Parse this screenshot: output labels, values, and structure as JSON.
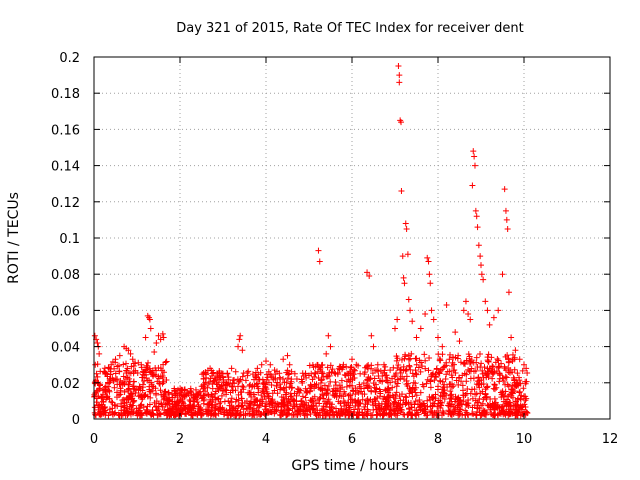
{
  "chart_data": {
    "type": "scatter",
    "title": "Day 321 of 2015, Rate Of TEC Index for receiver dent",
    "xlabel": "GPS time / hours",
    "ylabel": "ROTI / TECUs",
    "xlim": [
      0,
      12
    ],
    "ylim": [
      0,
      0.2
    ],
    "xticks": [
      "0",
      "2",
      "4",
      "6",
      "8",
      "10",
      "12"
    ],
    "yticks": [
      "0",
      "0.02",
      "0.04",
      "0.06",
      "0.08",
      "0.1",
      "0.12",
      "0.14",
      "0.16",
      "0.18",
      "0.2"
    ],
    "grid": true,
    "marker": "+",
    "color": "#ff0000",
    "series": [
      {
        "name": "ROTI",
        "points": [
          [
            0.02,
            0.046
          ],
          [
            0.05,
            0.044
          ],
          [
            0.08,
            0.042
          ],
          [
            0.1,
            0.04
          ],
          [
            0.12,
            0.036
          ],
          [
            0.03,
            0.03
          ],
          [
            0.06,
            0.025
          ],
          [
            0.4,
            0.03
          ],
          [
            0.5,
            0.033
          ],
          [
            0.6,
            0.035
          ],
          [
            0.7,
            0.04
          ],
          [
            0.75,
            0.039
          ],
          [
            0.8,
            0.038
          ],
          [
            0.85,
            0.036
          ],
          [
            0.9,
            0.033
          ],
          [
            1.1,
            0.03
          ],
          [
            1.2,
            0.045
          ],
          [
            1.25,
            0.057
          ],
          [
            1.28,
            0.056
          ],
          [
            1.3,
            0.055
          ],
          [
            1.32,
            0.05
          ],
          [
            1.4,
            0.037
          ],
          [
            1.45,
            0.042
          ],
          [
            1.5,
            0.046
          ],
          [
            1.55,
            0.044
          ],
          [
            1.6,
            0.047
          ],
          [
            1.62,
            0.045
          ],
          [
            2.6,
            0.025
          ],
          [
            2.7,
            0.028
          ],
          [
            3.0,
            0.025
          ],
          [
            3.2,
            0.028
          ],
          [
            3.35,
            0.04
          ],
          [
            3.38,
            0.044
          ],
          [
            3.4,
            0.046
          ],
          [
            3.45,
            0.038
          ],
          [
            3.8,
            0.028
          ],
          [
            3.9,
            0.03
          ],
          [
            4.0,
            0.032
          ],
          [
            4.1,
            0.03
          ],
          [
            4.2,
            0.027
          ],
          [
            4.4,
            0.033
          ],
          [
            4.5,
            0.035
          ],
          [
            4.55,
            0.03
          ],
          [
            5.0,
            0.024
          ],
          [
            5.15,
            0.025
          ],
          [
            5.22,
            0.093
          ],
          [
            5.25,
            0.087
          ],
          [
            5.3,
            0.026
          ],
          [
            5.4,
            0.036
          ],
          [
            5.45,
            0.046
          ],
          [
            5.5,
            0.04
          ],
          [
            5.7,
            0.028
          ],
          [
            5.8,
            0.03
          ],
          [
            6.0,
            0.033
          ],
          [
            6.1,
            0.03
          ],
          [
            6.35,
            0.081
          ],
          [
            6.4,
            0.079
          ],
          [
            6.45,
            0.046
          ],
          [
            6.5,
            0.04
          ],
          [
            6.6,
            0.03
          ],
          [
            7.0,
            0.05
          ],
          [
            7.05,
            0.055
          ],
          [
            7.08,
            0.195
          ],
          [
            7.1,
            0.19
          ],
          [
            7.1,
            0.186
          ],
          [
            7.12,
            0.165
          ],
          [
            7.14,
            0.164
          ],
          [
            7.15,
            0.126
          ],
          [
            7.18,
            0.09
          ],
          [
            7.2,
            0.078
          ],
          [
            7.22,
            0.075
          ],
          [
            7.25,
            0.108
          ],
          [
            7.27,
            0.105
          ],
          [
            7.3,
            0.091
          ],
          [
            7.32,
            0.066
          ],
          [
            7.35,
            0.06
          ],
          [
            7.4,
            0.054
          ],
          [
            7.5,
            0.045
          ],
          [
            7.6,
            0.05
          ],
          [
            7.7,
            0.058
          ],
          [
            7.75,
            0.089
          ],
          [
            7.78,
            0.087
          ],
          [
            7.8,
            0.08
          ],
          [
            7.82,
            0.075
          ],
          [
            7.85,
            0.06
          ],
          [
            7.9,
            0.055
          ],
          [
            8.0,
            0.045
          ],
          [
            8.1,
            0.04
          ],
          [
            8.2,
            0.063
          ],
          [
            8.4,
            0.048
          ],
          [
            8.5,
            0.043
          ],
          [
            8.6,
            0.06
          ],
          [
            8.65,
            0.065
          ],
          [
            8.7,
            0.058
          ],
          [
            8.75,
            0.055
          ],
          [
            8.8,
            0.129
          ],
          [
            8.82,
            0.148
          ],
          [
            8.84,
            0.145
          ],
          [
            8.86,
            0.14
          ],
          [
            8.88,
            0.115
          ],
          [
            8.9,
            0.112
          ],
          [
            8.92,
            0.106
          ],
          [
            8.95,
            0.096
          ],
          [
            8.98,
            0.09
          ],
          [
            9.0,
            0.085
          ],
          [
            9.02,
            0.08
          ],
          [
            9.05,
            0.077
          ],
          [
            9.1,
            0.065
          ],
          [
            9.15,
            0.06
          ],
          [
            9.2,
            0.052
          ],
          [
            9.3,
            0.056
          ],
          [
            9.4,
            0.06
          ],
          [
            9.5,
            0.08
          ],
          [
            9.55,
            0.127
          ],
          [
            9.58,
            0.115
          ],
          [
            9.6,
            0.11
          ],
          [
            9.62,
            0.105
          ],
          [
            9.65,
            0.07
          ],
          [
            9.7,
            0.045
          ],
          [
            9.8,
            0.038
          ],
          [
            9.9,
            0.033
          ],
          [
            10.0,
            0.03
          ],
          [
            10.05,
            0.028
          ]
        ]
      }
    ]
  }
}
